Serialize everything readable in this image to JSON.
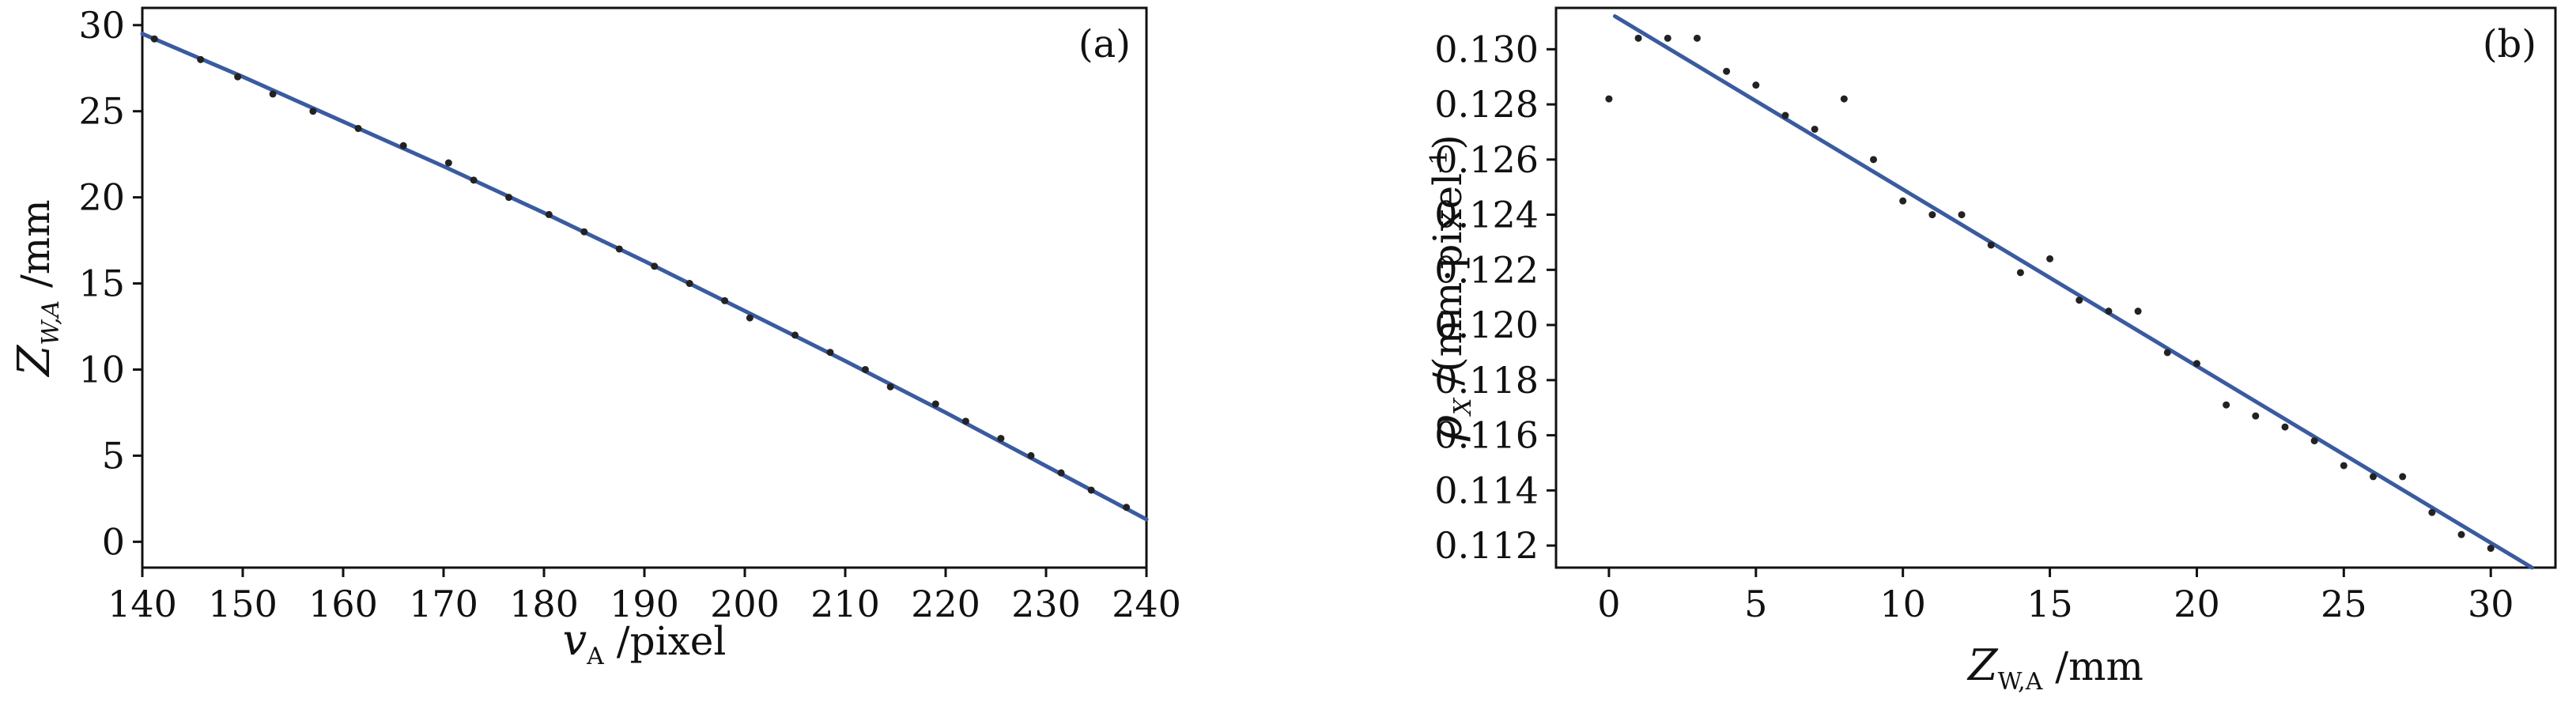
{
  "chart_data": [
    {
      "type": "scatter",
      "panel_label": "(a)",
      "xlabel": {
        "var": "v",
        "sub": "A",
        "unit": " /pixel"
      },
      "ylabel": {
        "var": "Z",
        "sub": "W,A",
        "unit": " /mm"
      },
      "xlim": [
        140,
        240
      ],
      "ylim": [
        -1.5,
        31
      ],
      "xticks": [
        140,
        150,
        160,
        170,
        180,
        190,
        200,
        210,
        220,
        230,
        240
      ],
      "yticks": [
        0,
        5,
        10,
        15,
        20,
        25,
        30
      ],
      "grid": false,
      "colors": {
        "points": "#222222",
        "fit_line": "#3a5ba0"
      },
      "points": [
        [
          141.2,
          29.2
        ],
        [
          145.8,
          28.0
        ],
        [
          149.5,
          27.0
        ],
        [
          153.0,
          26.0
        ],
        [
          157.0,
          25.0
        ],
        [
          161.5,
          24.0
        ],
        [
          166.0,
          23.0
        ],
        [
          170.5,
          22.0
        ],
        [
          173.0,
          21.0
        ],
        [
          176.5,
          20.0
        ],
        [
          180.5,
          19.0
        ],
        [
          184.0,
          18.0
        ],
        [
          187.5,
          17.0
        ],
        [
          191.0,
          16.0
        ],
        [
          194.5,
          15.0
        ],
        [
          198.0,
          14.0
        ],
        [
          200.5,
          13.0
        ],
        [
          205.0,
          12.0
        ],
        [
          208.5,
          11.0
        ],
        [
          212.0,
          10.0
        ],
        [
          214.5,
          9.0
        ],
        [
          219.0,
          8.0
        ],
        [
          222.0,
          7.0
        ],
        [
          225.5,
          6.0
        ],
        [
          228.5,
          5.0
        ],
        [
          231.5,
          4.0
        ],
        [
          234.5,
          3.0
        ],
        [
          238.0,
          2.0
        ]
      ],
      "fit_line": [
        [
          140,
          29.5
        ],
        [
          150,
          27.0
        ],
        [
          160,
          24.4
        ],
        [
          170,
          21.8
        ],
        [
          180,
          19.1
        ],
        [
          190,
          16.3
        ],
        [
          200,
          13.4
        ],
        [
          210,
          10.5
        ],
        [
          220,
          7.5
        ],
        [
          230,
          4.4
        ],
        [
          240,
          1.3
        ]
      ]
    },
    {
      "type": "scatter",
      "panel_label": "(b)",
      "xlabel": {
        "var": "Z",
        "sub": "W,A",
        "unit": " /mm"
      },
      "ylabel": {
        "var": "ρ",
        "sub": "X",
        "unit": " /(mm·pixel",
        "sup": "-1",
        "unit_end": ")"
      },
      "xlim": [
        -1.8,
        32.2
      ],
      "ylim": [
        0.1112,
        0.1315
      ],
      "xticks": [
        0,
        5,
        10,
        15,
        20,
        25,
        30
      ],
      "yticks": [
        0.112,
        0.114,
        0.116,
        0.118,
        0.12,
        0.122,
        0.124,
        0.126,
        0.128,
        0.13
      ],
      "ytick_labels": [
        "0.112",
        "0.114",
        "0.116",
        "0.118",
        "0.120",
        "0.122",
        "0.124",
        "0.126",
        "0.128",
        "0.130"
      ],
      "grid": false,
      "colors": {
        "points": "#222222",
        "fit_line": "#3a5ba0"
      },
      "points": [
        [
          0,
          0.1282
        ],
        [
          1,
          0.1304
        ],
        [
          2,
          0.1304
        ],
        [
          3,
          0.1304
        ],
        [
          4,
          0.1292
        ],
        [
          5,
          0.1287
        ],
        [
          6,
          0.1276
        ],
        [
          7,
          0.1271
        ],
        [
          8,
          0.1282
        ],
        [
          9,
          0.126
        ],
        [
          10,
          0.1245
        ],
        [
          11,
          0.124
        ],
        [
          12,
          0.124
        ],
        [
          13,
          0.1229
        ],
        [
          14,
          0.1219
        ],
        [
          15,
          0.1224
        ],
        [
          16,
          0.1209
        ],
        [
          17,
          0.1205
        ],
        [
          18,
          0.1205
        ],
        [
          19,
          0.119
        ],
        [
          20,
          0.1186
        ],
        [
          21,
          0.1171
        ],
        [
          22,
          0.1167
        ],
        [
          23,
          0.1163
        ],
        [
          24,
          0.1158
        ],
        [
          25,
          0.1149
        ],
        [
          26,
          0.1145
        ],
        [
          27,
          0.1145
        ],
        [
          28,
          0.1132
        ],
        [
          29,
          0.1124
        ],
        [
          30,
          0.1119
        ]
      ],
      "fit_line": [
        [
          0.2,
          0.1312
        ],
        [
          31.4,
          0.1112
        ]
      ]
    }
  ]
}
